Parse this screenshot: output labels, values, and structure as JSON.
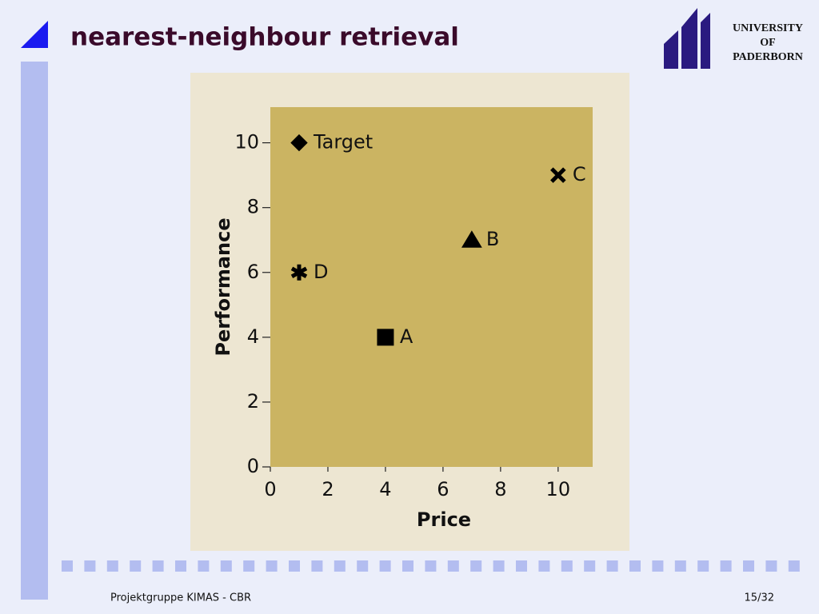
{
  "header": {
    "title": "nearest-neighbour retrieval",
    "logo_lines": [
      "UNIVERSITY",
      "OF",
      "PADERBORN"
    ]
  },
  "footer": {
    "text": "Projektgruppe KIMAS - CBR",
    "page": "15/32"
  },
  "chart_data": {
    "type": "scatter",
    "x_label": "Price",
    "y_label": "Performance",
    "xlim": [
      0,
      11.2
    ],
    "ylim": [
      0,
      11.1
    ],
    "xticks": [
      0,
      2,
      4,
      6,
      8,
      10
    ],
    "yticks": [
      0,
      2,
      4,
      6,
      8,
      10
    ],
    "series": [
      {
        "name": "Target",
        "marker": "diamond",
        "color": "#000000",
        "x": [
          1
        ],
        "values": [
          10
        ]
      },
      {
        "name": "C",
        "marker": "cross",
        "color": "#000000",
        "x": [
          10
        ],
        "values": [
          9
        ]
      },
      {
        "name": "B",
        "marker": "triangle",
        "color": "#000000",
        "x": [
          7
        ],
        "values": [
          7
        ]
      },
      {
        "name": "D",
        "marker": "asterisk",
        "color": "#000000",
        "x": [
          1
        ],
        "values": [
          6
        ]
      },
      {
        "name": "A",
        "marker": "square",
        "color": "#000000",
        "x": [
          4
        ],
        "values": [
          4
        ]
      }
    ]
  }
}
